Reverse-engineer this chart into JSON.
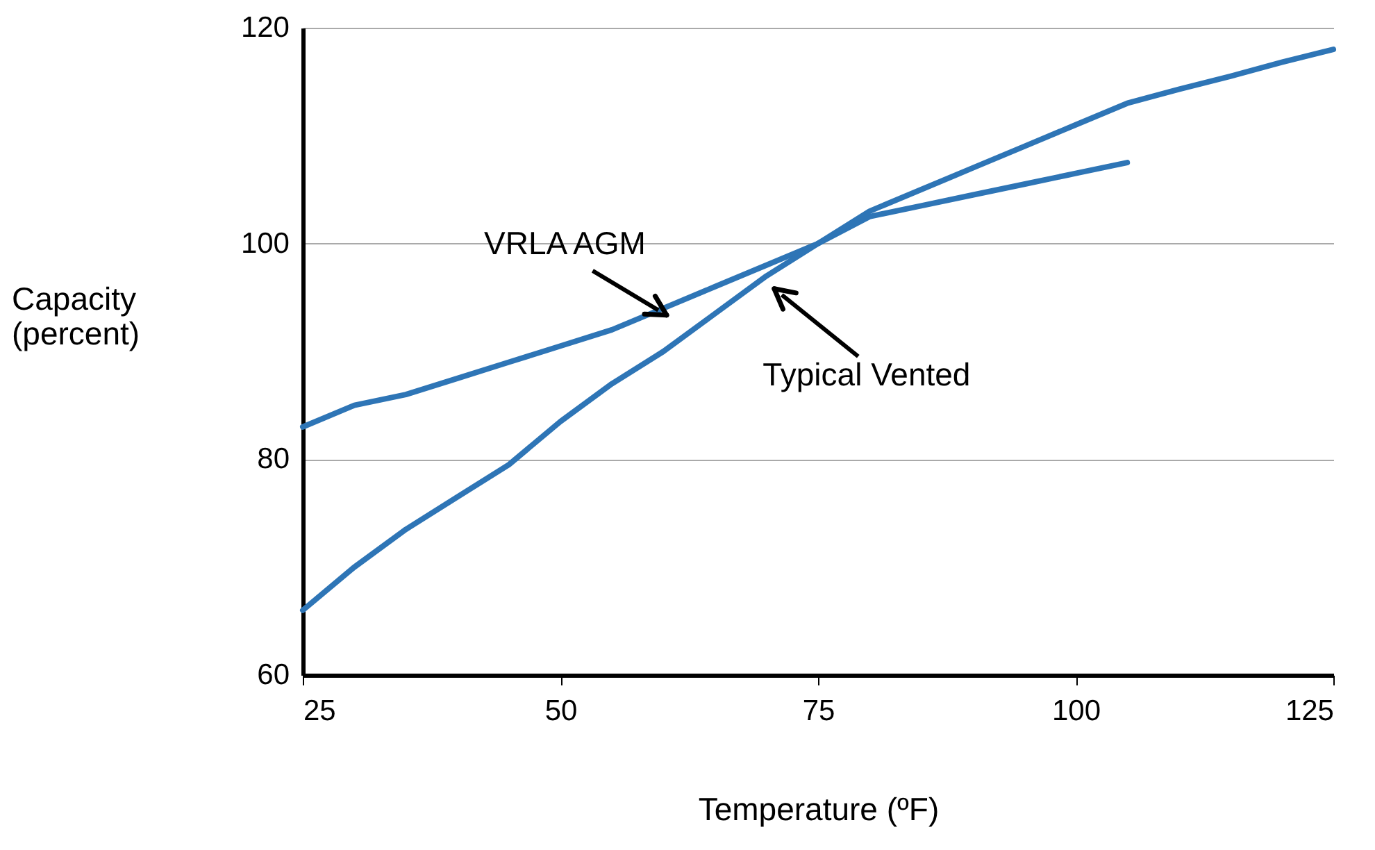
{
  "chart_data": {
    "type": "line",
    "xlabel": "Temperature (ºF)",
    "ylabel": "Capacity\n(percent)",
    "xlim": [
      25,
      125
    ],
    "xticks": [
      25,
      50,
      75,
      100,
      125
    ],
    "ylim": [
      60,
      120
    ],
    "yticks": [
      60,
      80,
      100,
      120
    ],
    "grid": "y",
    "marker": "none",
    "line_style": "solid",
    "series": [
      {
        "name": "VRLA AGM",
        "color": "#2e75b6",
        "x": [
          25,
          30,
          35,
          40,
          45,
          50,
          55,
          60,
          65,
          70,
          75,
          80,
          85,
          90,
          95,
          100,
          105
        ],
        "values": [
          83,
          85,
          86,
          87.5,
          89,
          90.5,
          92,
          94,
          96,
          98,
          100,
          102.5,
          103.5,
          104.5,
          105.5,
          106.5,
          107.5
        ]
      },
      {
        "name": "Typical Vented",
        "color": "#2e75b6",
        "x": [
          25,
          30,
          35,
          40,
          45,
          50,
          55,
          60,
          65,
          70,
          75,
          80,
          85,
          90,
          95,
          100,
          105,
          110,
          115,
          120,
          125
        ],
        "values": [
          66,
          70,
          73.5,
          76.5,
          79.5,
          83.5,
          87,
          90,
          93.5,
          97,
          100,
          103,
          105,
          107,
          109,
          111,
          113,
          114.3,
          115.5,
          116.8,
          118
        ]
      }
    ]
  }
}
